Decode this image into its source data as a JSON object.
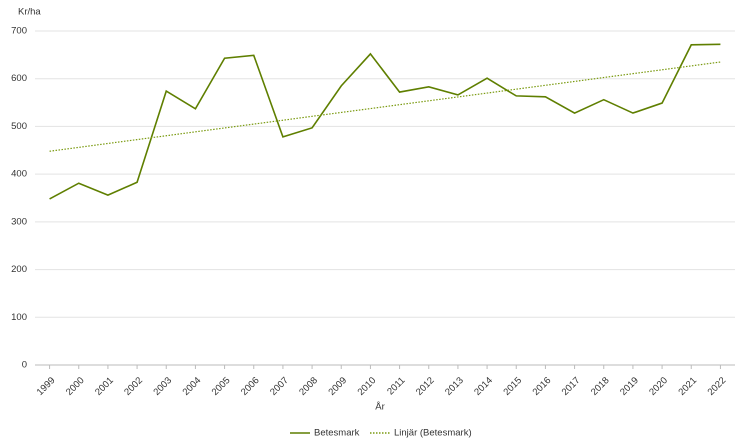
{
  "chart_data": {
    "type": "line",
    "y_label": "Kr/ha",
    "x_label": "År",
    "categories": [
      "1999",
      "2000",
      "2001",
      "2002",
      "2003",
      "2004",
      "2005",
      "2006",
      "2007",
      "2008",
      "2009",
      "2010",
      "2011",
      "2012",
      "2013",
      "2014",
      "2015",
      "2016",
      "2017",
      "2018",
      "2019",
      "2020",
      "2021",
      "2022"
    ],
    "series": [
      {
        "name": "Betesmark",
        "color": "#5f7f00",
        "dash": "solid",
        "values": [
          348,
          381,
          356,
          383,
          574,
          537,
          643,
          649,
          478,
          497,
          585,
          652,
          572,
          583,
          566,
          601,
          564,
          562,
          528,
          556,
          528,
          549,
          671,
          672
        ]
      },
      {
        "name": "Linjär (Betesmark)",
        "color": "#7a9a10",
        "dash": "dotted",
        "values": [
          448,
          456.1,
          464.3,
          472.4,
          480.5,
          488.7,
          496.8,
          504.9,
          513,
          521.2,
          529.3,
          537.4,
          545.6,
          553.7,
          561.8,
          569.9,
          578.1,
          586.2,
          594.3,
          602.5,
          610.6,
          618.7,
          626.9,
          635
        ]
      }
    ],
    "ylim": [
      0,
      700
    ],
    "yticks": [
      0,
      100,
      200,
      300,
      400,
      500,
      600,
      700
    ],
    "grid": true
  }
}
